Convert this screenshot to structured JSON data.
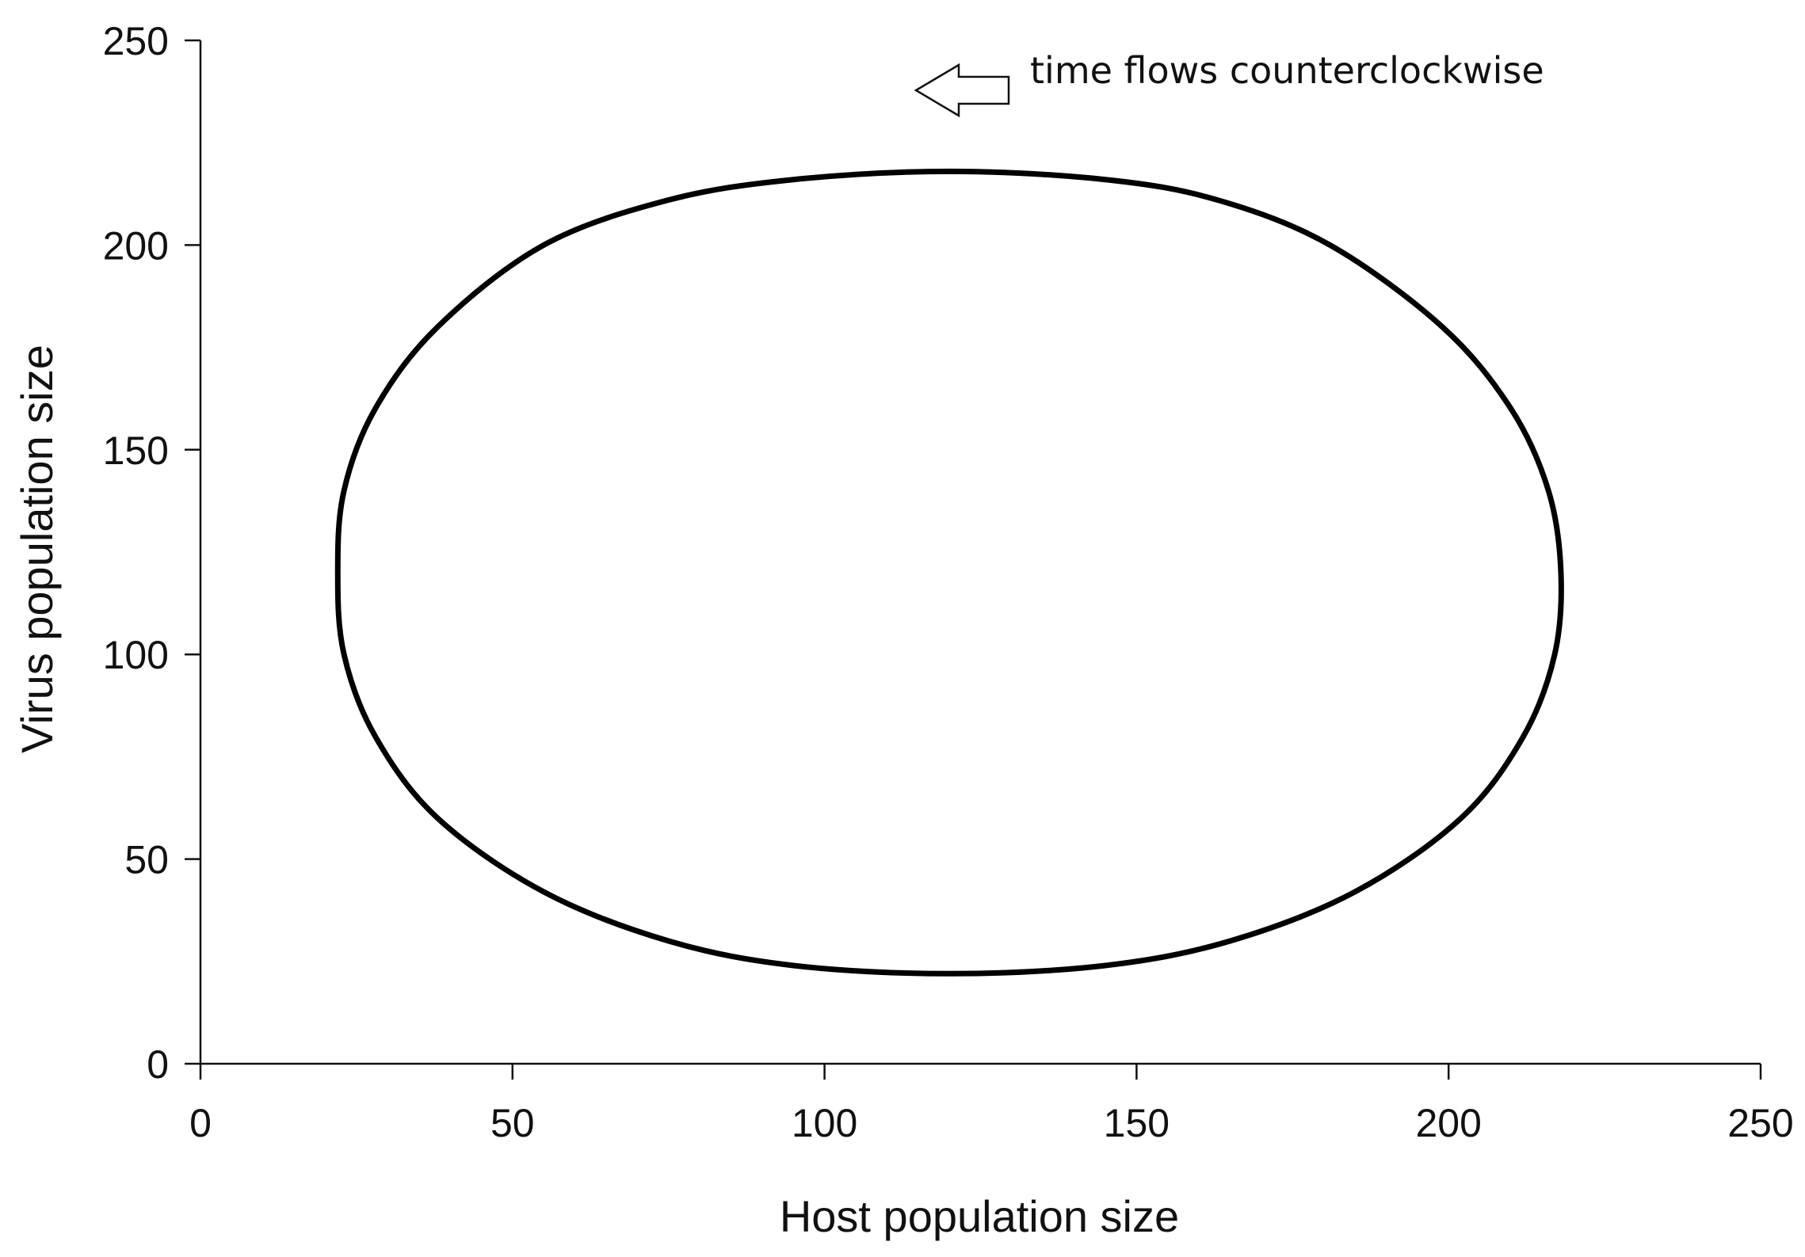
{
  "chart_data": {
    "type": "line",
    "title": "",
    "xlabel": "Host population size",
    "ylabel": "Virus population size",
    "xlim": [
      0,
      250
    ],
    "ylim": [
      0,
      250
    ],
    "xticks": [
      "0",
      "50",
      "100",
      "150",
      "200",
      "250"
    ],
    "yticks": [
      "0",
      "50",
      "100",
      "150",
      "200",
      "250"
    ],
    "grid": false,
    "legend": "none",
    "annotation": {
      "text": "time flows counterclockwise",
      "arrow_direction": "left"
    },
    "series": [
      {
        "closed_loop": true,
        "line_color": "#000000",
        "points": [
          {
            "x": 218,
            "y": 120
          },
          {
            "x": 216,
            "y": 140
          },
          {
            "x": 210,
            "y": 160
          },
          {
            "x": 199,
            "y": 180
          },
          {
            "x": 181,
            "y": 200
          },
          {
            "x": 163,
            "y": 211
          },
          {
            "x": 145,
            "y": 216
          },
          {
            "x": 120,
            "y": 218
          },
          {
            "x": 95,
            "y": 216
          },
          {
            "x": 75,
            "y": 211
          },
          {
            "x": 55,
            "y": 200
          },
          {
            "x": 38,
            "y": 180
          },
          {
            "x": 28,
            "y": 160
          },
          {
            "x": 23,
            "y": 140
          },
          {
            "x": 22,
            "y": 120
          },
          {
            "x": 23,
            "y": 100
          },
          {
            "x": 28,
            "y": 80
          },
          {
            "x": 38,
            "y": 60
          },
          {
            "x": 55,
            "y": 42
          },
          {
            "x": 75,
            "y": 30
          },
          {
            "x": 95,
            "y": 24
          },
          {
            "x": 120,
            "y": 22
          },
          {
            "x": 145,
            "y": 24
          },
          {
            "x": 165,
            "y": 30
          },
          {
            "x": 185,
            "y": 42
          },
          {
            "x": 202,
            "y": 60
          },
          {
            "x": 212,
            "y": 80
          },
          {
            "x": 217,
            "y": 100
          }
        ]
      }
    ]
  }
}
